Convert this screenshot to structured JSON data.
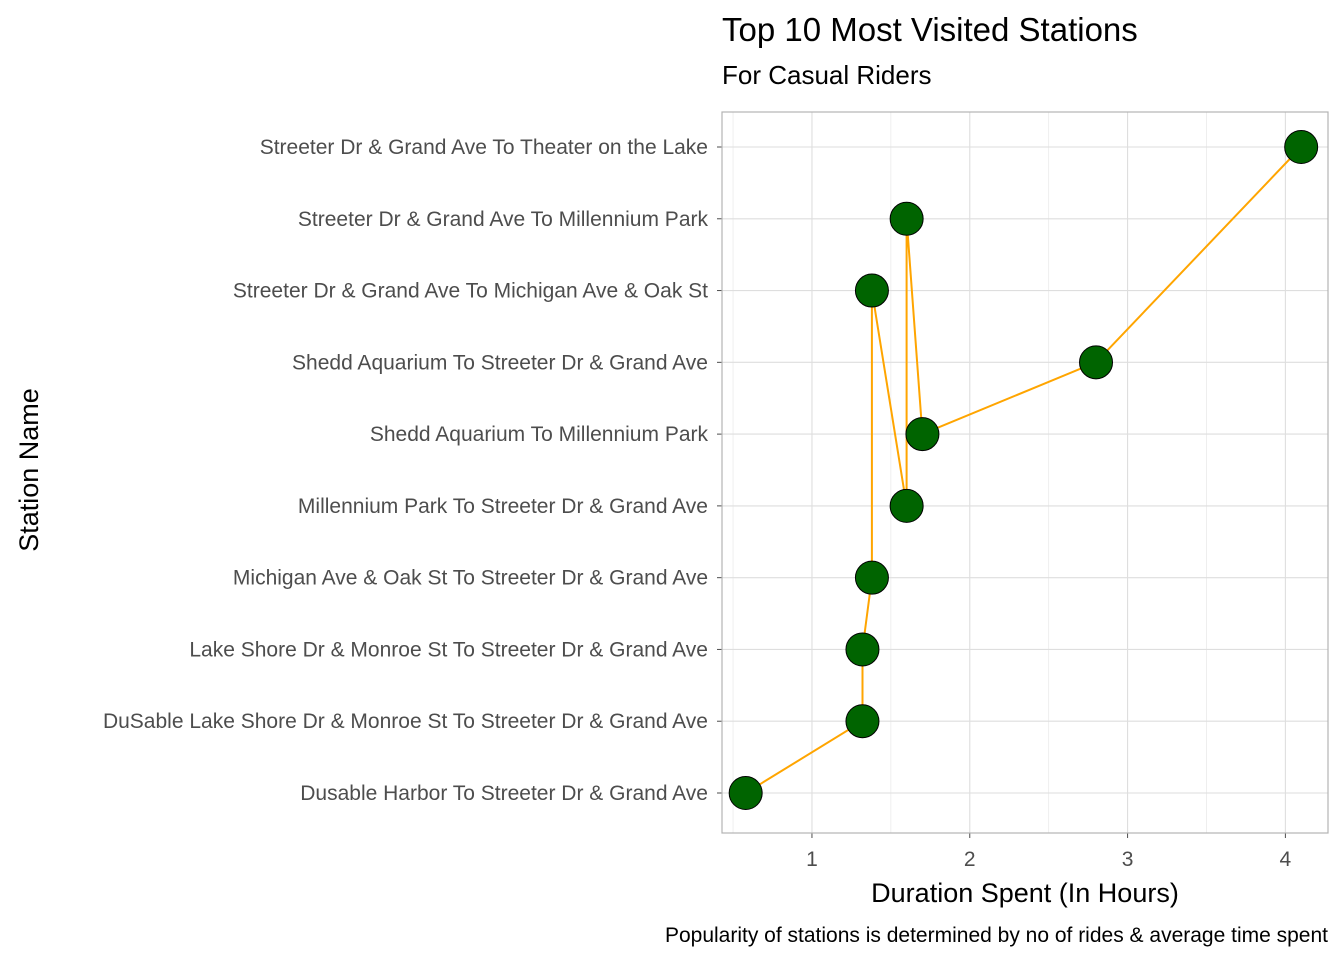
{
  "chart_data": {
    "type": "line",
    "title": "Top 10 Most Visited Stations",
    "subtitle": "For Casual Riders",
    "caption": "Popularity of stations is determined by no of rides & average time spent",
    "xlabel": "Duration Spent (In Hours)",
    "ylabel": "Station Name",
    "categories": [
      "Dusable Harbor To Streeter Dr & Grand Ave",
      "DuSable Lake Shore Dr & Monroe St To Streeter Dr & Grand Ave",
      "Lake Shore Dr & Monroe St To Streeter Dr & Grand Ave",
      "Michigan Ave & Oak St To Streeter Dr & Grand Ave",
      "Millennium Park To Streeter Dr & Grand Ave",
      "Shedd Aquarium To Millennium Park",
      "Shedd Aquarium To Streeter Dr & Grand Ave",
      "Streeter Dr & Grand Ave To Michigan Ave & Oak St",
      "Streeter Dr & Grand Ave To Millennium Park",
      "Streeter Dr & Grand Ave To Theater on the Lake"
    ],
    "values": [
      0.58,
      1.32,
      1.32,
      1.38,
      1.6,
      1.7,
      2.8,
      1.38,
      1.6,
      4.1
    ],
    "line_order": [
      0,
      1,
      2,
      3,
      7,
      4,
      8,
      5,
      6,
      9
    ],
    "xlim": [
      0.43,
      4.27
    ],
    "xticks": [
      1,
      2,
      3,
      4
    ],
    "grid": true,
    "legend": "none",
    "colors": {
      "line": "#FFA500",
      "point_fill": "#006400",
      "point_stroke": "#000000",
      "grid": "#ebebeb",
      "panel_border": "#b3b3b3"
    }
  }
}
